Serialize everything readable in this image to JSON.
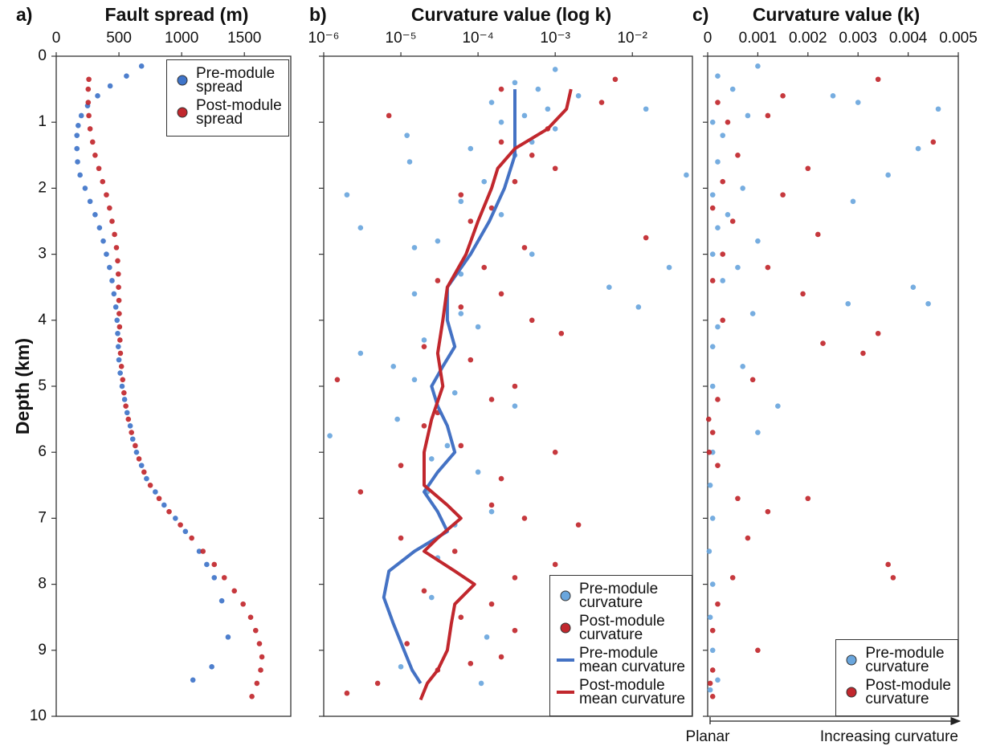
{
  "chart_data": [
    {
      "type": "scatter",
      "panel_label": "a)",
      "title": "Fault spread (m)",
      "ylabel": "Depth (km)",
      "xlim": [
        0,
        1870
      ],
      "xticks": [
        0,
        500,
        1000,
        1500
      ],
      "ylim": [
        10,
        0
      ],
      "yticks": [
        0,
        1,
        2,
        3,
        4,
        5,
        6,
        7,
        8,
        9,
        10
      ],
      "ytick_labels": true,
      "legend": "upper right",
      "series": [
        {
          "name": "Pre-module\nspread",
          "type": "scatter",
          "color": "#3f74c9",
          "x": [
            680,
            560,
            430,
            330,
            250,
            200,
            175,
            165,
            165,
            170,
            190,
            230,
            270,
            310,
            345,
            375,
            400,
            425,
            445,
            460,
            475,
            485,
            490,
            495,
            500,
            510,
            525,
            545,
            565,
            590,
            610,
            640,
            680,
            720,
            790,
            860,
            950,
            1030,
            1140,
            1200,
            1260,
            1320,
            1370,
            1240,
            1090
          ],
          "y": [
            0.15,
            0.3,
            0.45,
            0.6,
            0.75,
            0.9,
            1.05,
            1.2,
            1.4,
            1.6,
            1.8,
            2.0,
            2.2,
            2.4,
            2.6,
            2.8,
            3.0,
            3.2,
            3.4,
            3.6,
            3.8,
            4.0,
            4.2,
            4.4,
            4.6,
            4.8,
            5.0,
            5.2,
            5.4,
            5.6,
            5.8,
            6.0,
            6.2,
            6.4,
            6.6,
            6.8,
            7.0,
            7.2,
            7.5,
            7.7,
            7.9,
            8.25,
            8.8,
            9.25,
            9.45
          ]
        },
        {
          "name": "Post-module\nspread",
          "type": "scatter",
          "color": "#c1272d",
          "x": [
            260,
            255,
            255,
            260,
            270,
            290,
            310,
            340,
            370,
            400,
            425,
            445,
            465,
            480,
            490,
            495,
            497,
            500,
            502,
            505,
            508,
            512,
            520,
            530,
            540,
            555,
            575,
            600,
            630,
            660,
            700,
            750,
            820,
            900,
            990,
            1080,
            1170,
            1260,
            1340,
            1420,
            1490,
            1550,
            1590,
            1620,
            1640,
            1630,
            1600,
            1560
          ],
          "y": [
            0.35,
            0.5,
            0.7,
            0.9,
            1.1,
            1.3,
            1.5,
            1.7,
            1.9,
            2.1,
            2.3,
            2.5,
            2.7,
            2.9,
            3.1,
            3.3,
            3.5,
            3.7,
            3.9,
            4.1,
            4.3,
            4.5,
            4.7,
            4.9,
            5.1,
            5.3,
            5.5,
            5.7,
            5.9,
            6.1,
            6.3,
            6.5,
            6.7,
            6.9,
            7.1,
            7.3,
            7.5,
            7.7,
            7.9,
            8.1,
            8.3,
            8.5,
            8.7,
            8.9,
            9.1,
            9.3,
            9.5,
            9.7
          ]
        }
      ]
    },
    {
      "type": "scatter",
      "panel_label": "b)",
      "title": "Curvature value (log k)",
      "xscale": "log",
      "xlim": [
        1e-06,
        0.06
      ],
      "xticks": [
        {
          "value": 1e-06,
          "label": "10⁻⁶"
        },
        {
          "value": 1e-05,
          "label": "10⁻⁵"
        },
        {
          "value": 0.0001,
          "label": "10⁻⁴"
        },
        {
          "value": 0.001,
          "label": "10⁻³"
        },
        {
          "value": 0.01,
          "label": "10⁻²"
        }
      ],
      "ylim": [
        10,
        0
      ],
      "yticks": [
        0,
        1,
        2,
        3,
        4,
        5,
        6,
        7,
        8,
        9,
        10
      ],
      "ytick_labels": false,
      "legend": "lower right",
      "series": [
        {
          "name": "Pre-module\ncurvature",
          "type": "scatter",
          "color": "#6aa6dd",
          "x": [
            0.001,
            0.0003,
            0.0006,
            0.002,
            0.00015,
            0.0008,
            0.015,
            0.0004,
            0.0002,
            0.001,
            1.2e-05,
            0.0005,
            8e-05,
            0.0003,
            1.3e-05,
            0.05,
            0.00012,
            2e-06,
            6e-05,
            0.0002,
            3e-06,
            3e-05,
            1.5e-05,
            0.0005,
            0.03,
            6e-05,
            0.005,
            1.5e-05,
            0.012,
            6e-05,
            0.0001,
            2e-05,
            3e-06,
            8e-06,
            1.5e-05,
            5e-05,
            0.0003,
            9e-06,
            1.2e-06,
            4e-05,
            2.5e-05,
            0.0001,
            2.2e-05,
            0.00015,
            5e-05,
            3e-05,
            2.5e-05,
            0.00013,
            1e-05,
            0.00011
          ],
          "y": [
            0.2,
            0.4,
            0.5,
            0.6,
            0.7,
            0.8,
            0.8,
            0.9,
            1.0,
            1.1,
            1.2,
            1.3,
            1.4,
            1.5,
            1.6,
            1.8,
            1.9,
            2.1,
            2.2,
            2.4,
            2.6,
            2.8,
            2.9,
            3.0,
            3.2,
            3.3,
            3.5,
            3.6,
            3.8,
            3.9,
            4.1,
            4.3,
            4.5,
            4.7,
            4.9,
            5.1,
            5.3,
            5.5,
            5.75,
            5.9,
            6.1,
            6.3,
            6.6,
            6.9,
            7.1,
            7.6,
            8.2,
            8.8,
            9.25,
            9.5
          ]
        },
        {
          "name": "Post-module\ncurvature",
          "type": "scatter",
          "color": "#c1272d",
          "x": [
            0.006,
            0.0002,
            0.004,
            7e-06,
            0.0008,
            0.0002,
            0.0005,
            0.001,
            0.0003,
            6e-05,
            0.00015,
            8e-05,
            0.015,
            0.0004,
            0.00012,
            3e-05,
            0.0002,
            6e-05,
            0.0005,
            0.0012,
            2e-05,
            8e-05,
            1.5e-06,
            0.00015,
            3e-05,
            2e-05,
            6e-05,
            1e-05,
            0.0002,
            3e-06,
            0.00015,
            0.0004,
            0.002,
            1e-05,
            5e-05,
            0.001,
            0.0003,
            2e-05,
            0.00015,
            6e-05,
            0.0003,
            1.2e-05,
            0.0002,
            3e-05,
            5e-06,
            2e-06,
            8e-05,
            0.006,
            0.001,
            0.0003
          ],
          "y": [
            0.35,
            0.5,
            0.7,
            0.9,
            1.1,
            1.3,
            1.5,
            1.7,
            1.9,
            2.1,
            2.3,
            2.5,
            2.75,
            2.9,
            3.2,
            3.4,
            3.6,
            3.8,
            4.0,
            4.2,
            4.4,
            4.6,
            4.9,
            5.2,
            5.4,
            5.6,
            5.9,
            6.2,
            6.4,
            6.6,
            6.8,
            7.0,
            7.1,
            7.3,
            7.5,
            7.7,
            7.9,
            8.1,
            8.3,
            8.5,
            8.7,
            8.9,
            9.1,
            9.3,
            9.5,
            9.65,
            9.2,
            8.0,
            6.0,
            5.0
          ]
        },
        {
          "name": "Pre-module\nmean curvature",
          "type": "line",
          "color": "#4472c4",
          "x": [
            0.0003,
            0.0003,
            0.0003,
            0.00022,
            0.00014,
            8e-05,
            4e-05,
            4e-05,
            5e-05,
            3.5e-05,
            2.5e-05,
            3e-05,
            4e-05,
            5e-05,
            3e-05,
            2e-05,
            3e-05,
            4e-05,
            1.5e-05,
            7e-06,
            6e-06,
            8e-06,
            1.1e-05,
            1.4e-05,
            1.8e-05
          ],
          "y": [
            0.5,
            1.0,
            1.5,
            2.0,
            2.5,
            3.0,
            3.5,
            4.0,
            4.4,
            4.7,
            5.0,
            5.3,
            5.6,
            6.0,
            6.3,
            6.6,
            6.9,
            7.2,
            7.5,
            7.8,
            8.2,
            8.6,
            9.0,
            9.3,
            9.5
          ]
        },
        {
          "name": "Post-module\nmean curvature",
          "type": "line",
          "color": "#c1272d",
          "x": [
            0.0016,
            0.0014,
            0.0008,
            0.0003,
            0.00018,
            0.00015,
            0.0001,
            7e-05,
            4e-05,
            3.5e-05,
            3e-05,
            3.5e-05,
            2.5e-05,
            2e-05,
            2e-05,
            4e-05,
            6e-05,
            3e-05,
            2e-05,
            5e-05,
            9e-05,
            5e-05,
            4.5e-05,
            4e-05,
            3e-05,
            2.2e-05,
            1.8e-05
          ],
          "y": [
            0.5,
            0.8,
            1.1,
            1.4,
            1.7,
            2.0,
            2.5,
            3.0,
            3.5,
            4.0,
            4.5,
            5.0,
            5.5,
            6.0,
            6.5,
            6.8,
            7.0,
            7.3,
            7.5,
            7.8,
            8.0,
            8.3,
            8.6,
            9.0,
            9.3,
            9.5,
            9.75
          ]
        }
      ]
    },
    {
      "type": "scatter",
      "panel_label": "c)",
      "title": "Curvature value (k)",
      "xlim": [
        0,
        0.005
      ],
      "xticks": [
        0,
        0.001,
        0.002,
        0.003,
        0.004,
        0.005
      ],
      "ylim": [
        10,
        0
      ],
      "yticks": [
        0,
        1,
        2,
        3,
        4,
        5,
        6,
        7,
        8,
        9,
        10
      ],
      "ytick_labels": false,
      "annotations": [
        "Planar",
        "Increasing curvature"
      ],
      "legend": "lower right",
      "series": [
        {
          "name": "Pre-module\ncurvature",
          "type": "scatter",
          "color": "#6aa6dd",
          "x": [
            0.001,
            0.0002,
            0.0005,
            0.0025,
            0.003,
            0.0046,
            0.0008,
            0.0001,
            0.0003,
            0.0042,
            0.0002,
            0.0036,
            0.0007,
            0.0001,
            0.0029,
            0.0004,
            0.0002,
            0.001,
            0.0001,
            0.0006,
            0.0003,
            0.0041,
            0.0044,
            0.0028,
            0.0009,
            0.0002,
            0.0001,
            0.0007,
            0.0001,
            0.0014,
            0.001,
            0.0001,
            5e-05,
            0.0001,
            3e-05,
            0.0001,
            5e-05,
            0.0001,
            0.0002,
            5e-05
          ],
          "y": [
            0.15,
            0.3,
            0.5,
            0.6,
            0.7,
            0.8,
            0.9,
            1.0,
            1.2,
            1.4,
            1.6,
            1.8,
            2.0,
            2.1,
            2.2,
            2.4,
            2.6,
            2.8,
            3.0,
            3.2,
            3.4,
            3.5,
            3.75,
            3.75,
            3.9,
            4.1,
            4.4,
            4.7,
            5.0,
            5.3,
            5.7,
            6.0,
            6.5,
            7.0,
            7.5,
            8.0,
            8.5,
            9.0,
            9.45,
            9.6
          ]
        },
        {
          "name": "Post-module\ncurvature",
          "type": "scatter",
          "color": "#c1272d",
          "x": [
            0.0034,
            0.0015,
            0.0002,
            0.0012,
            0.0004,
            0.0045,
            0.0006,
            0.002,
            0.0003,
            0.0015,
            0.0001,
            0.0005,
            0.0022,
            0.0003,
            0.0012,
            0.0001,
            0.0019,
            0.0003,
            0.0034,
            0.0023,
            0.0031,
            0.0009,
            0.0002,
            0.0001,
            0.0002,
            0.0006,
            0.002,
            0.0012,
            0.0008,
            0.0036,
            0.0037,
            0.0005,
            0.0002,
            0.0001,
            0.001,
            0.0001,
            5e-05,
            0.0001,
            2e-05,
            3e-05
          ],
          "y": [
            0.35,
            0.6,
            0.7,
            0.9,
            1.0,
            1.3,
            1.5,
            1.7,
            1.9,
            2.1,
            2.3,
            2.5,
            2.7,
            3.0,
            3.2,
            3.4,
            3.6,
            4.0,
            4.2,
            4.35,
            4.5,
            4.9,
            5.2,
            5.7,
            6.2,
            6.7,
            6.7,
            6.9,
            7.3,
            7.7,
            7.9,
            7.9,
            8.3,
            8.7,
            9.0,
            9.3,
            9.5,
            9.7,
            5.5,
            6.0
          ]
        }
      ]
    }
  ]
}
